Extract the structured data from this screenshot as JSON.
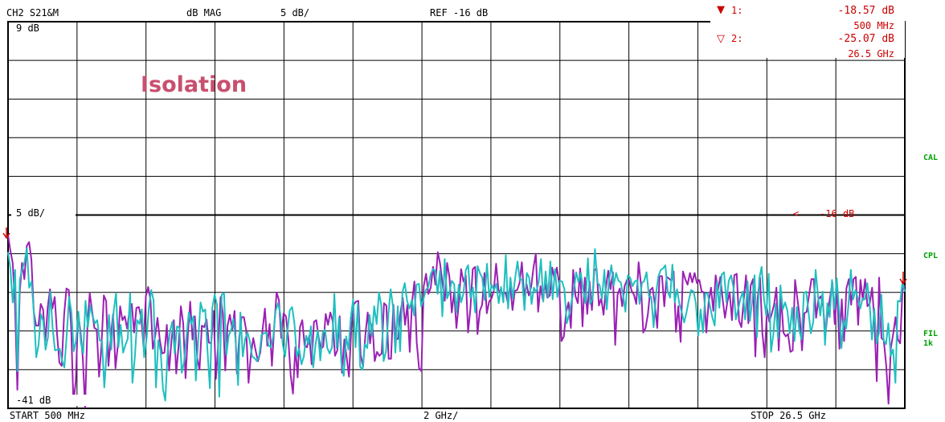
{
  "header": {
    "channel": "CH2  S21&M",
    "format": "dB  MAG",
    "scale": "5 dB/",
    "reference": "REF -16 dB"
  },
  "markers": [
    {
      "symbol": "▼",
      "label": "1:",
      "value": "-18.57 dB",
      "frequency": "500 MHz"
    },
    {
      "symbol": "▽",
      "label": "2:",
      "value": "-25.07 dB",
      "frequency": "26.5 GHz"
    }
  ],
  "annotations": {
    "title": "Isolation",
    "top_axis": "9 dB",
    "mid_axis": "5 dB/",
    "bottom_axis": "-41 dB",
    "ref_line": "-16 dB",
    "ref_arrow": "<"
  },
  "footer": {
    "start": "START  500 MHz",
    "span": "2 GHz/",
    "stop": "STOP 26.5 GHz"
  },
  "side_labels": {
    "cal": "CAL",
    "cpl": "CPL",
    "fil": "FIL",
    "fil_bw": "1k"
  },
  "colors": {
    "grid": "#000000",
    "text": "#000000",
    "marker": "#cc0000",
    "title": "#c8506e",
    "side": "#00a000",
    "trace1": "#9b1fb4",
    "trace2": "#1fbfbf"
  },
  "chart_data": {
    "type": "line",
    "title": "Isolation",
    "xlabel": "",
    "ylabel": "",
    "x_unit": "GHz",
    "y_unit": "dB",
    "xlim": [
      0.5,
      26.5
    ],
    "ylim": [
      -41,
      9
    ],
    "reference_level": -16,
    "series": [
      {
        "values": [
          -18.6,
          -20.6,
          -22.2,
          -27.7,
          -38.6,
          -26.1,
          -22.2,
          -24.3,
          -20.0,
          -19.5,
          -21.8,
          -28.5,
          -30.3,
          -30.3,
          -27.5,
          -28.2,
          -32.3,
          -27.9,
          -25.6,
          -28.1,
          -26.6,
          -31.4,
          -35.1,
          -35.5,
          -28.9,
          -25.5,
          -25.7,
          -30.4,
          -40.3,
          -37.5,
          -28.7,
          -31.0,
          -34.4,
          -40.9,
          -30.3,
          -26.1,
          -28.4,
          -30.6,
          -30.8,
          -36.9,
          -32.9,
          -26.4,
          -27.1,
          -35.5,
          -31.7,
          -28.8,
          -35.8,
          -32.9,
          -27.8,
          -29.6,
          -29.1,
          -30.7,
          -28.4,
          -27.5,
          -31.2,
          -28.0,
          -27.9,
          -29.3,
          -33.0,
          -26.5,
          -25.3,
          -27.0,
          -33.3,
          -31.7,
          -29.3,
          -32.2,
          -33.9,
          -33.8,
          -30.2,
          -36.1,
          -32.2,
          -29.6,
          -36.5,
          -33.0,
          -27.8,
          -30.0,
          -37.1,
          -31.5,
          -27.2,
          -32.1,
          -29.1,
          -34.4,
          -36.0,
          -30.3,
          -30.5,
          -29.5,
          -32.5,
          -32.6,
          -28.4,
          -37.2,
          -32.6,
          -26.6,
          -28.8,
          -36.1,
          -30.3,
          -28.9,
          -30.8,
          -28.4,
          -36.5,
          -31.9,
          -29.2,
          -29.2,
          -30.9,
          -37.7,
          -34.0,
          -31.9,
          -33.5,
          -34.9,
          -33.8,
          -30.8,
          -28.1,
          -32.9,
          -30.1,
          -35.5,
          -30.4,
          -26.0,
          -27.0,
          -31.9,
          -28.7,
          -29.1,
          -32.0,
          -36.7,
          -39.1,
          -33.1,
          -37.0,
          -30.5,
          -29.6,
          -32.9,
          -33.1,
          -31.6,
          -35.3,
          -29.8,
          -29.6,
          -31.8,
          -33.3,
          -33.0,
          -28.8,
          -30.2,
          -28.6,
          -29.7,
          -34.2,
          -33.5,
          -29.1,
          -36.4,
          -32.1,
          -34.4,
          -36.9,
          -30.7,
          -27.6,
          -27.2,
          -27.1,
          -34.1,
          -35.6,
          -31.5,
          -28.6,
          -32.6,
          -30.1,
          -34.9,
          -33.7,
          -34.2,
          -33.9,
          -27.4,
          -27.7,
          -34.6,
          -34.6,
          -27.6,
          -32.1,
          -32.0,
          -28.7,
          -26.7,
          -30.2,
          -27.6,
          -33.7,
          -27.2,
          -24.6,
          -32.5,
          -35.8,
          -36.2,
          -25.2,
          -23.6,
          -26.2,
          -25.4,
          -22.7,
          -25.0,
          -20.8,
          -22.3,
          -24.8,
          -27.1,
          -22.2,
          -24.0,
          -28.6,
          -26.0,
          -30.6,
          -27.5,
          -23.0,
          -24.6,
          -23.8,
          -31.2,
          -28.1,
          -23.0,
          -22.7,
          -31.4,
          -28.4,
          -27.6,
          -23.5,
          -28.7,
          -27.2,
          -26.8,
          -25.8,
          -22.3,
          -25.7,
          -26.0,
          -26.2,
          -26.0,
          -27.3,
          -25.0,
          -28.3,
          -25.8,
          -25.7,
          -24.8,
          -22.1,
          -26.5,
          -24.9,
          -26.4,
          -25.3,
          -22.8,
          -21.0,
          -28.5,
          -25.2,
          -26.9,
          -24.9,
          -26.7,
          -26.4,
          -22.8,
          -24.3,
          -22.8,
          -24.9,
          -32.3,
          -31.7,
          -28.5,
          -27.3,
          -30.6,
          -23.1,
          -26.5,
          -27.4,
          -22.9,
          -30.4,
          -24.1,
          -28.8,
          -24.6,
          -28.3,
          -23.2,
          -22.9,
          -27.7,
          -26.8,
          -28.9,
          -25.4,
          -23.2,
          -25.6,
          -23.4,
          -32.8,
          -26.3,
          -25.5,
          -27.8,
          -25.2,
          -24.4,
          -24.5,
          -25.8,
          -26.3,
          -27.5,
          -22.1,
          -24.9,
          -31.2,
          -30.6,
          -28.8,
          -25.7,
          -25.4,
          -27.6,
          -30.6,
          -23.9,
          -23.9,
          -27.8,
          -24.0,
          -24.2,
          -24.5,
          -23.3,
          -31.1,
          -27.8,
          -32.4,
          -23.3,
          -24.3,
          -25.0,
          -23.5,
          -24.7,
          -23.5,
          -24.8,
          -24.4,
          -25.9,
          -26.0,
          -31.2,
          -27.2,
          -25.4,
          -28.4,
          -23.8,
          -25.7,
          -24.0,
          -26.9,
          -29.3,
          -27.3,
          -26.0,
          -29.6,
          -23.8,
          -23.6,
          -29.7,
          -30.5,
          -27.0,
          -23.8,
          -30.0,
          -25.1,
          -24.3,
          -34.3,
          -26.7,
          -24.1,
          -31.2,
          -34.4,
          -28.1,
          -29.8,
          -28.8,
          -27.6,
          -25.4,
          -33.5,
          -26.4,
          -31.2,
          -31.7,
          -31.4,
          -33.7,
          -33.5,
          -24.4,
          -26.8,
          -29.2,
          -33.5,
          -28.7,
          -28.5,
          -26.4,
          -24.3,
          -24.3,
          -29.3,
          -26.9,
          -26.5,
          -27.8,
          -31.5,
          -28.5,
          -26.6,
          -24.7,
          -30.1,
          -25.2,
          -33.3,
          -26.9,
          -32.3,
          -25.5,
          -24.3,
          -27.6,
          -24.3,
          -24.0,
          -30.2,
          -24.4,
          -27.0,
          -24.3,
          -27.8,
          -27.4,
          -25.4,
          -29.9,
          -37.5,
          -24.1,
          -31.9,
          -32.2,
          -35.4,
          -40.4,
          -33.2,
          -31.4,
          -29.2,
          -32.1,
          -32.6,
          -25.6,
          -25.1
        ],
        "color": "#9b1fb4"
      },
      {
        "values": [
          -20.8,
          -22.9,
          -27.3,
          -23.1,
          -36.2,
          -24.4,
          -23.0,
          -22.1,
          -20.3,
          -25.4,
          -24.6,
          -28.5,
          -34.4,
          -32.8,
          -28.8,
          -29.7,
          -33.4,
          -31.8,
          -25.9,
          -30.6,
          -33.5,
          -33.4,
          -33.3,
          -34.8,
          -35.7,
          -31.6,
          -26.6,
          -28.6,
          -33.6,
          -32.2,
          -28.5,
          -32.5,
          -33.9,
          -27.1,
          -30.5,
          -27.7,
          -29.1,
          -30.0,
          -29.6,
          -32.2,
          -32.3,
          -38.3,
          -33.8,
          -28.9,
          -33.4,
          -28.4,
          -26.1,
          -33.1,
          -30.2,
          -33.8,
          -32.8,
          -32.0,
          -26.1,
          -37.7,
          -34.4,
          -29.6,
          -30.1,
          -28.2,
          -34.4,
          -32.0,
          -28.0,
          -25.7,
          -27.0,
          -38.3,
          -32.2,
          -33.6,
          -38.5,
          -40.0,
          -33.6,
          -31.0,
          -29.8,
          -33.9,
          -30.4,
          -30.6,
          -36.4,
          -35.0,
          -31.8,
          -28.6,
          -30.1,
          -29.1,
          -37.4,
          -32.3,
          -27.3,
          -28.5,
          -28.2,
          -33.7,
          -38.4,
          -28.0,
          -26.3,
          -27.6,
          -39.5,
          -26.3,
          -26.1,
          -34.1,
          -31.6,
          -30.9,
          -29.4,
          -32.5,
          -38.0,
          -28.6,
          -34.3,
          -32.0,
          -31.2,
          -32.3,
          -34.3,
          -34.5,
          -34.9,
          -34.2,
          -31.5,
          -31.3,
          -31.2,
          -32.9,
          -33.1,
          -31.7,
          -28.4,
          -27.4,
          -28.8,
          -32.7,
          -34.3,
          -31.0,
          -28.3,
          -27.9,
          -30.0,
          -34.3,
          -33.3,
          -35.3,
          -34.3,
          -31.6,
          -32.7,
          -30.4,
          -35.7,
          -32.7,
          -30.9,
          -34.8,
          -31.3,
          -30.8,
          -33.2,
          -33.9,
          -33.1,
          -26.2,
          -33.2,
          -29.3,
          -35.1,
          -36.8,
          -31.7,
          -33.4,
          -29.3,
          -26.9,
          -33.1,
          -27.5,
          -35.6,
          -36.0,
          -32.7,
          -33.2,
          -28.9,
          -31.6,
          -27.8,
          -30.1,
          -26.0,
          -27.7,
          -34.9,
          -33.6,
          -28.9,
          -25.6,
          -27.9,
          -33.8,
          -27.8,
          -33.6,
          -26.0,
          -24.8,
          -27.1,
          -28.1,
          -27.0,
          -29.0,
          -25.0,
          -24.9,
          -27.8,
          -26.8,
          -25.7,
          -25.3,
          -23.7,
          -23.0,
          -23.2,
          -26.2,
          -23.2,
          -29.1,
          -21.7,
          -26.8,
          -26.0,
          -24.5,
          -24.9,
          -28.6,
          -25.0,
          -27.3,
          -26.1,
          -23.1,
          -22.5,
          -26.7,
          -25.4,
          -28.6,
          -22.6,
          -23.5,
          -24.1,
          -27.0,
          -22.3,
          -26.6,
          -25.0,
          -25.7,
          -24.9,
          -27.4,
          -25.3,
          -27.3,
          -21.2,
          -28.1,
          -24.1,
          -26.8,
          -24.2,
          -22.0,
          -24.4,
          -24.3,
          -28.3,
          -23.5,
          -24.1,
          -27.5,
          -25.4,
          -26.0,
          -24.7,
          -21.7,
          -27.2,
          -23.3,
          -26.6,
          -22.0,
          -26.9,
          -23.0,
          -26.6,
          -24.5,
          -24.6,
          -25.6,
          -30.0,
          -28.9,
          -27.2,
          -25.8,
          -23.4,
          -24.7,
          -23.5,
          -25.8,
          -27.4,
          -21.6,
          -27.5,
          -26.8,
          -20.4,
          -24.7,
          -25.1,
          -26.8,
          -23.1,
          -28.2,
          -24.4,
          -22.5,
          -25.1,
          -23.5,
          -24.5,
          -24.7,
          -26.3,
          -28.5,
          -23.8,
          -24.1,
          -25.2,
          -24.6,
          -24.4,
          -27.5,
          -24.8,
          -24.5,
          -23.4,
          -26.5,
          -26.6,
          -30.5,
          -26.3,
          -24.0,
          -23.1,
          -22.9,
          -22.5,
          -25.9,
          -26.7,
          -22.4,
          -27.3,
          -25.6,
          -27.5,
          -28.6,
          -29.9,
          -28.6,
          -27.0,
          -25.7,
          -25.9,
          -27.4,
          -31.6,
          -28.2,
          -31.2,
          -26.2,
          -26.1,
          -27.8,
          -29.2,
          -30.3,
          -24.6,
          -28.0,
          -23.7,
          -23.4,
          -27.3,
          -24.5,
          -23.8,
          -25.3,
          -29.5,
          -28.2,
          -26.8,
          -25.9,
          -29.5,
          -24.6,
          -29.7,
          -27.1,
          -23.8,
          -31.8,
          -24.2,
          -22.7,
          -26.8,
          -29.0,
          -23.6,
          -33.7,
          -31.4,
          -27.5,
          -31.9,
          -25.1,
          -28.2,
          -27.3,
          -28.4,
          -31.3,
          -28.0,
          -32.3,
          -27.9,
          -30.8,
          -32.1,
          -26.1,
          -25.9,
          -28.6,
          -31.3,
          -29.8,
          -23.1,
          -26.4,
          -29.0,
          -25.9,
          -32.8,
          -27.4,
          -29.2,
          -24.4,
          -28.2,
          -24.2,
          -28.2,
          -33.2,
          -29.5,
          -30.7,
          -27.6,
          -23.1,
          -26.9,
          -25.7,
          -26.8,
          -28.1,
          -26.8,
          -26.9,
          -24.8,
          -27.5,
          -32.1,
          -28.1,
          -32.6,
          -31.2,
          -26.3,
          -32.2,
          -32.7,
          -30.0,
          -34.2,
          -33.4,
          -37.7,
          -27.1,
          -27.2,
          -24.7,
          -25.9
        ],
        "color": "#1fbfbf"
      }
    ]
  }
}
